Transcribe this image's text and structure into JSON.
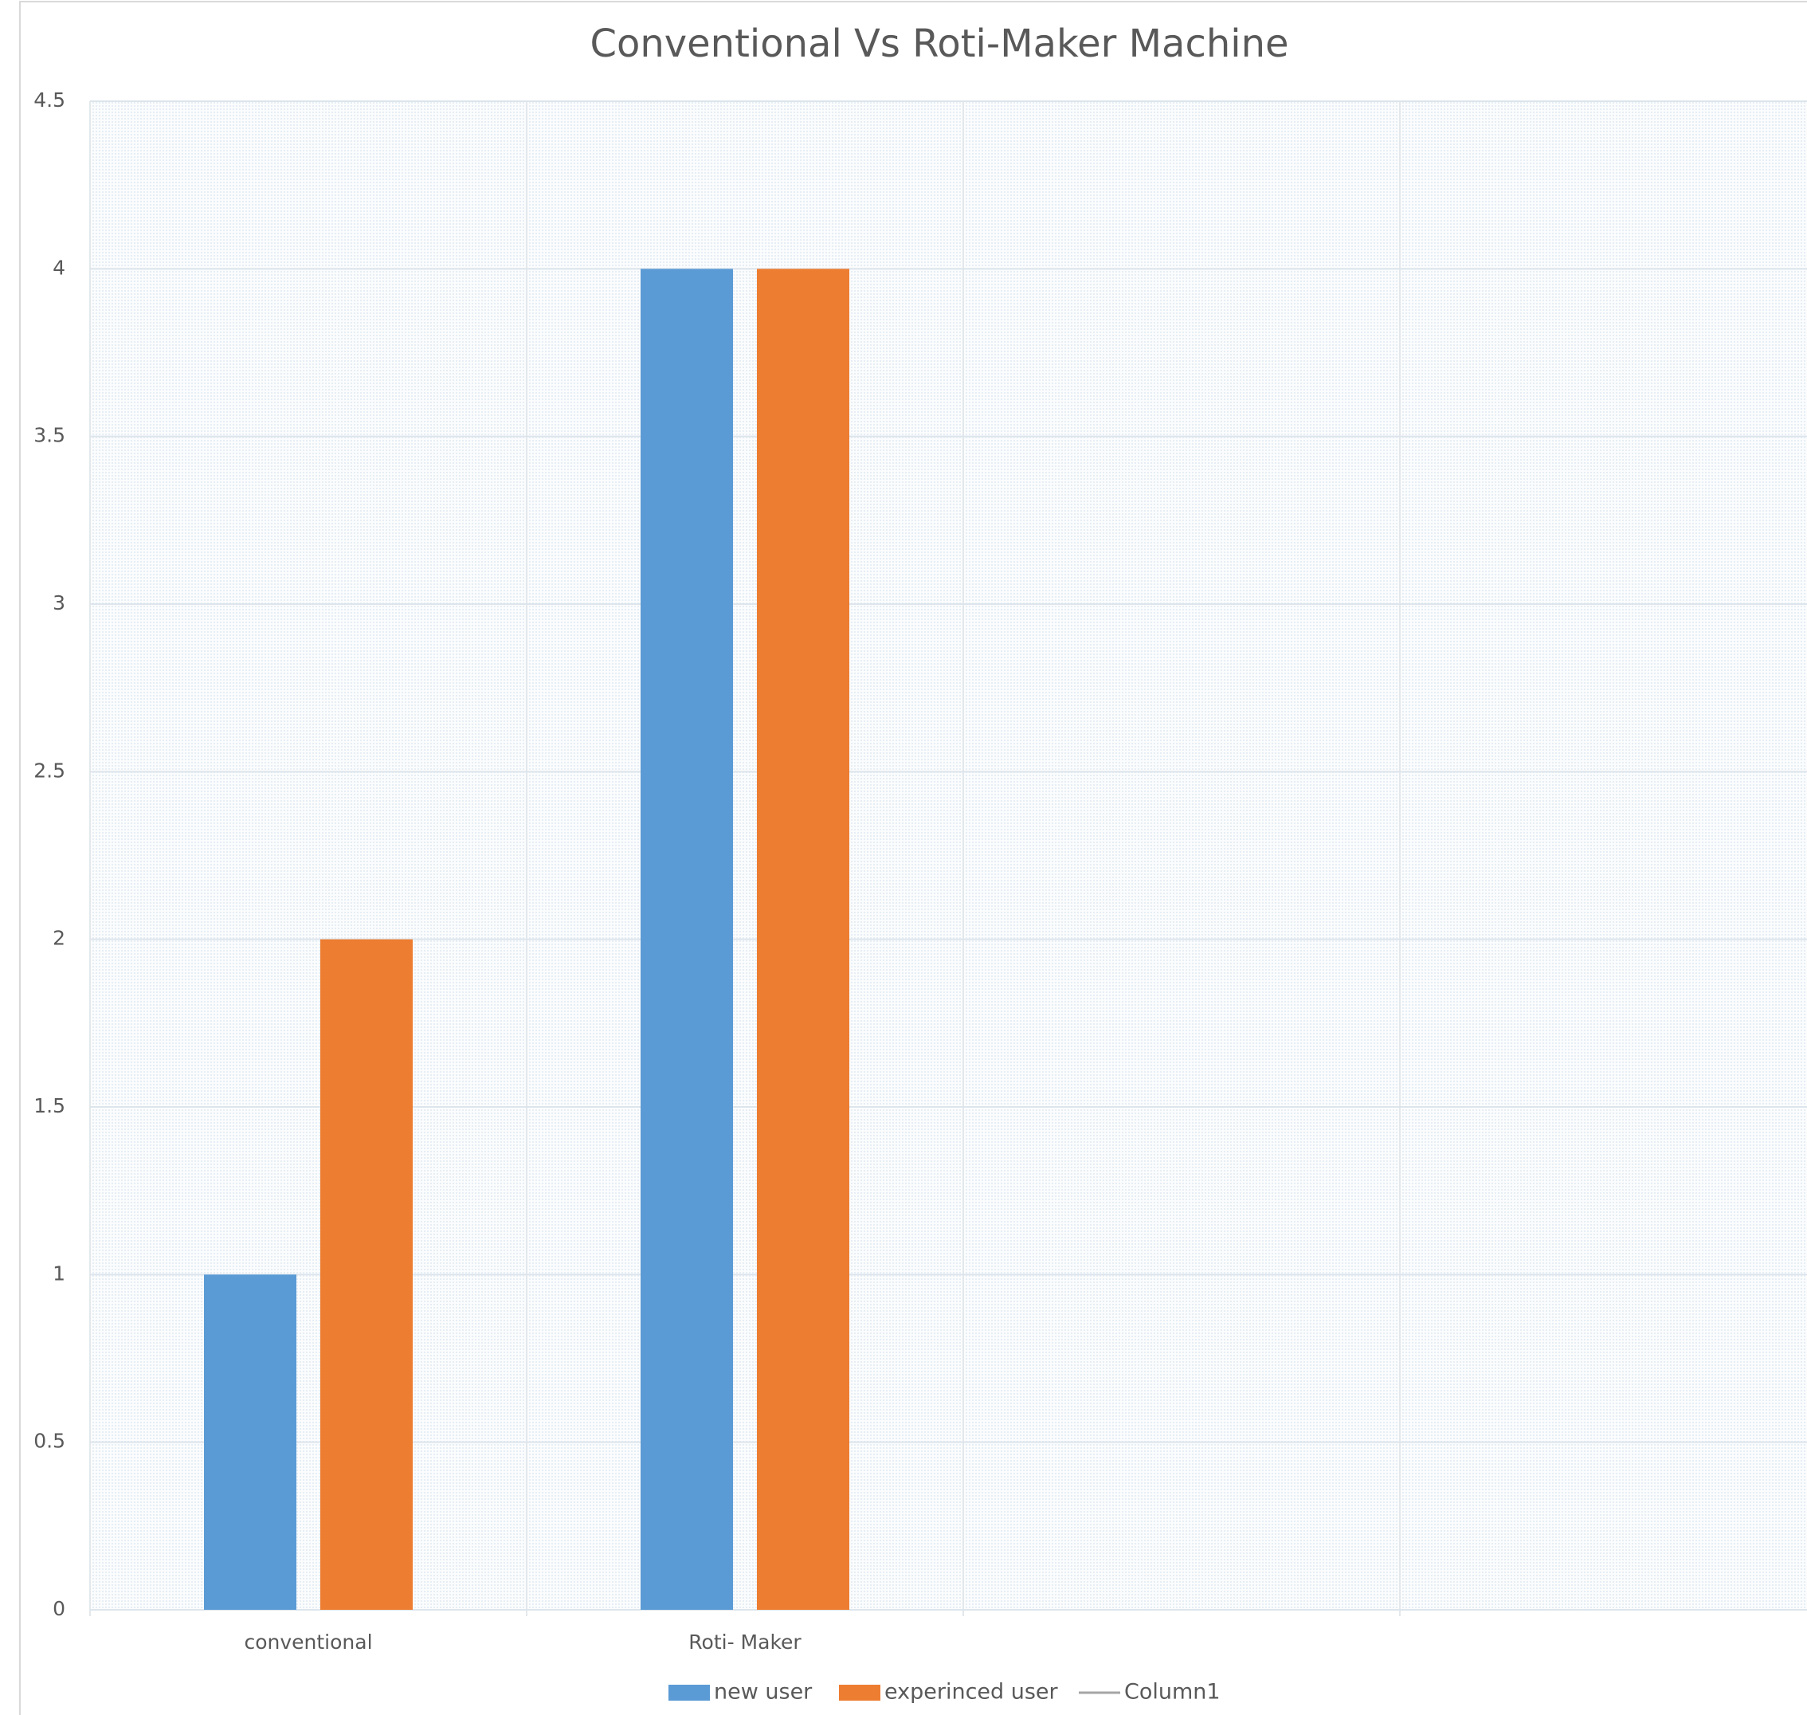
{
  "chart_data": {
    "type": "bar",
    "title": "Conventional Vs Roti-Maker Machine",
    "categories": [
      "conventional",
      "Roti- Maker",
      null,
      null
    ],
    "series": [
      {
        "name": "new user",
        "color": "#5b9bd5",
        "values": [
          1,
          4,
          null,
          null
        ]
      },
      {
        "name": "experinced user",
        "color": "#ed7d31",
        "values": [
          2,
          4,
          null,
          null
        ]
      },
      {
        "name": "Column1",
        "color": "#a5a5a5",
        "type": "line",
        "values": [
          null,
          null,
          null,
          null
        ]
      }
    ],
    "ylim": [
      0,
      4.5
    ],
    "yticks": [
      0,
      0.5,
      1,
      1.5,
      2,
      2.5,
      3,
      3.5,
      4,
      4.5
    ],
    "grid": true,
    "legend": "bottom"
  }
}
